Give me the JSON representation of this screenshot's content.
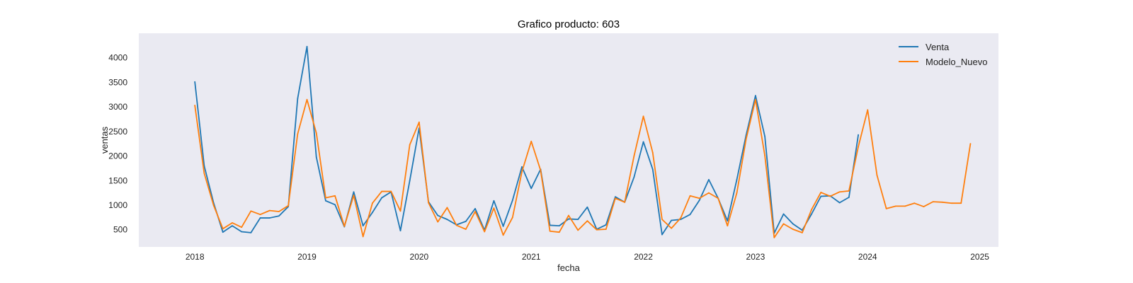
{
  "chart_data": {
    "type": "line",
    "title": "Grafico producto: 603",
    "xlabel": "fecha",
    "ylabel": "ventas",
    "x_tick_labels": [
      "2018",
      "2019",
      "2020",
      "2021",
      "2022",
      "2023",
      "2024",
      "2025"
    ],
    "y_tick_labels": [
      "500",
      "1000",
      "1500",
      "2000",
      "2500",
      "3000",
      "3500",
      "4000"
    ],
    "y_ticks": [
      500,
      1000,
      1500,
      2000,
      2500,
      3000,
      3500,
      4000
    ],
    "xlim": [
      "2017-07",
      "2025-03"
    ],
    "ylim": [
      150,
      4500
    ],
    "grid": false,
    "background": "#eaeaf2",
    "legend_position": "top-right",
    "series": [
      {
        "name": "Venta",
        "color": "#1f77b4",
        "x": [
          "2018-01",
          "2018-02",
          "2018-03",
          "2018-04",
          "2018-05",
          "2018-06",
          "2018-07",
          "2018-08",
          "2018-09",
          "2018-10",
          "2018-11",
          "2018-12",
          "2019-01",
          "2019-02",
          "2019-03",
          "2019-04",
          "2019-05",
          "2019-06",
          "2019-07",
          "2019-08",
          "2019-09",
          "2019-10",
          "2019-11",
          "2019-12",
          "2020-01",
          "2020-02",
          "2020-03",
          "2020-04",
          "2020-05",
          "2020-06",
          "2020-07",
          "2020-08",
          "2020-09",
          "2020-10",
          "2020-11",
          "2020-12",
          "2021-01",
          "2021-02",
          "2021-03",
          "2021-04",
          "2021-05",
          "2021-06",
          "2021-07",
          "2021-08",
          "2021-09",
          "2021-10",
          "2021-11",
          "2021-12",
          "2022-01",
          "2022-02",
          "2022-03",
          "2022-04",
          "2022-05",
          "2022-06",
          "2022-07",
          "2022-08",
          "2022-09",
          "2022-10",
          "2022-11",
          "2022-12",
          "2023-01",
          "2023-02",
          "2023-03",
          "2023-04",
          "2023-05",
          "2023-06",
          "2023-07",
          "2023-08",
          "2023-09",
          "2023-10",
          "2023-11",
          "2023-12"
        ],
        "values": [
          3510,
          1800,
          1050,
          450,
          580,
          460,
          440,
          740,
          740,
          780,
          970,
          3170,
          4230,
          1980,
          1090,
          1010,
          560,
          1270,
          580,
          850,
          1150,
          1270,
          480,
          1500,
          2570,
          1070,
          790,
          710,
          600,
          670,
          930,
          490,
          1090,
          570,
          1100,
          1780,
          1340,
          1730,
          590,
          580,
          720,
          710,
          960,
          510,
          600,
          1170,
          1060,
          1570,
          2290,
          1730,
          400,
          690,
          710,
          810,
          1100,
          1520,
          1140,
          680,
          1520,
          2430,
          3230,
          2400,
          430,
          820,
          620,
          490,
          820,
          1180,
          1190,
          1050,
          1160,
          2430
        ]
      },
      {
        "name": "Modelo_Nuevo",
        "color": "#ff7f0e",
        "x": [
          "2018-01",
          "2018-02",
          "2018-03",
          "2018-04",
          "2018-05",
          "2018-06",
          "2018-07",
          "2018-08",
          "2018-09",
          "2018-10",
          "2018-11",
          "2018-12",
          "2019-01",
          "2019-02",
          "2019-03",
          "2019-04",
          "2019-05",
          "2019-06",
          "2019-07",
          "2019-08",
          "2019-09",
          "2019-10",
          "2019-11",
          "2019-12",
          "2020-01",
          "2020-02",
          "2020-03",
          "2020-04",
          "2020-05",
          "2020-06",
          "2020-07",
          "2020-08",
          "2020-09",
          "2020-10",
          "2020-11",
          "2020-12",
          "2021-01",
          "2021-02",
          "2021-03",
          "2021-04",
          "2021-05",
          "2021-06",
          "2021-07",
          "2021-08",
          "2021-09",
          "2021-10",
          "2021-11",
          "2021-12",
          "2022-01",
          "2022-02",
          "2022-03",
          "2022-04",
          "2022-05",
          "2022-06",
          "2022-07",
          "2022-08",
          "2022-09",
          "2022-10",
          "2022-11",
          "2022-12",
          "2023-01",
          "2023-02",
          "2023-03",
          "2023-04",
          "2023-05",
          "2023-06",
          "2023-07",
          "2023-08",
          "2023-09",
          "2023-10",
          "2023-11",
          "2023-12",
          "2024-01",
          "2024-02",
          "2024-03",
          "2024-04",
          "2024-05",
          "2024-06",
          "2024-07",
          "2024-08",
          "2024-09",
          "2024-10",
          "2024-11",
          "2024-12"
        ],
        "values": [
          3030,
          1650,
          1000,
          520,
          640,
          550,
          880,
          810,
          890,
          870,
          990,
          2450,
          3150,
          2470,
          1150,
          1190,
          570,
          1200,
          360,
          1040,
          1280,
          1280,
          880,
          2230,
          2690,
          1050,
          660,
          950,
          590,
          510,
          870,
          460,
          940,
          390,
          750,
          1680,
          2300,
          1710,
          470,
          450,
          790,
          490,
          680,
          500,
          510,
          1140,
          1060,
          2000,
          2810,
          2070,
          710,
          530,
          740,
          1190,
          1140,
          1250,
          1140,
          580,
          1250,
          2350,
          3150,
          2010,
          340,
          620,
          510,
          440,
          910,
          1260,
          1180,
          1270,
          1290,
          2190,
          2940,
          1610,
          930,
          980,
          980,
          1040,
          970,
          1070,
          1060,
          1040,
          1040,
          2250
        ]
      }
    ]
  }
}
